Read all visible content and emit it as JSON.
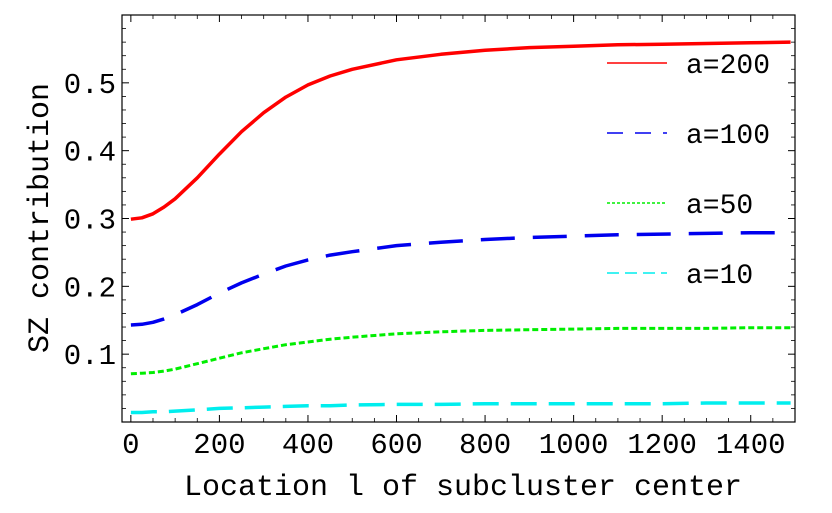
{
  "chart_data": {
    "type": "line",
    "title": "",
    "xlabel": "Location l of subcluster center",
    "ylabel": "SZ contribution",
    "xlim": [
      -20,
      1500
    ],
    "ylim": [
      0.0,
      0.6
    ],
    "xticks": [
      0,
      200,
      400,
      600,
      800,
      1000,
      1200,
      1400
    ],
    "xtick_labels": [
      "0",
      "200",
      "400",
      "600",
      "800",
      "1000",
      "1200",
      "1400"
    ],
    "yticks": [
      0.1,
      0.2,
      0.3,
      0.4,
      0.5
    ],
    "ytick_labels": [
      "0.1",
      "0.2",
      "0.3",
      "0.4",
      "0.5"
    ],
    "grid": false,
    "legend_position": "right",
    "x": [
      0,
      25,
      50,
      75,
      100,
      150,
      200,
      250,
      300,
      350,
      400,
      450,
      500,
      600,
      700,
      800,
      900,
      1000,
      1100,
      1200,
      1300,
      1400,
      1490
    ],
    "series": [
      {
        "name": "a=200",
        "color": "#ff0000",
        "style": "solid",
        "values": [
          0.299,
          0.301,
          0.307,
          0.317,
          0.329,
          0.36,
          0.395,
          0.428,
          0.456,
          0.479,
          0.497,
          0.51,
          0.52,
          0.534,
          0.542,
          0.548,
          0.552,
          0.554,
          0.556,
          0.557,
          0.558,
          0.559,
          0.56
        ]
      },
      {
        "name": "a=100",
        "color": "#0000ee",
        "style": "long-dash",
        "values": [
          0.143,
          0.144,
          0.147,
          0.152,
          0.158,
          0.173,
          0.19,
          0.205,
          0.218,
          0.23,
          0.239,
          0.246,
          0.251,
          0.26,
          0.265,
          0.269,
          0.272,
          0.274,
          0.276,
          0.277,
          0.278,
          0.279,
          0.279
        ]
      },
      {
        "name": "a=50",
        "color": "#00ee00",
        "style": "short-dash",
        "values": [
          0.071,
          0.072,
          0.073,
          0.075,
          0.078,
          0.086,
          0.094,
          0.102,
          0.108,
          0.114,
          0.118,
          0.122,
          0.125,
          0.13,
          0.133,
          0.135,
          0.136,
          0.137,
          0.138,
          0.138,
          0.138,
          0.139,
          0.139
        ]
      },
      {
        "name": "a=10",
        "color": "#00eeee",
        "style": "dash-dot",
        "values": [
          0.014,
          0.014,
          0.015,
          0.015,
          0.016,
          0.018,
          0.02,
          0.021,
          0.022,
          0.023,
          0.024,
          0.024,
          0.025,
          0.026,
          0.026,
          0.027,
          0.027,
          0.027,
          0.027,
          0.027,
          0.028,
          0.028,
          0.028
        ]
      }
    ]
  }
}
